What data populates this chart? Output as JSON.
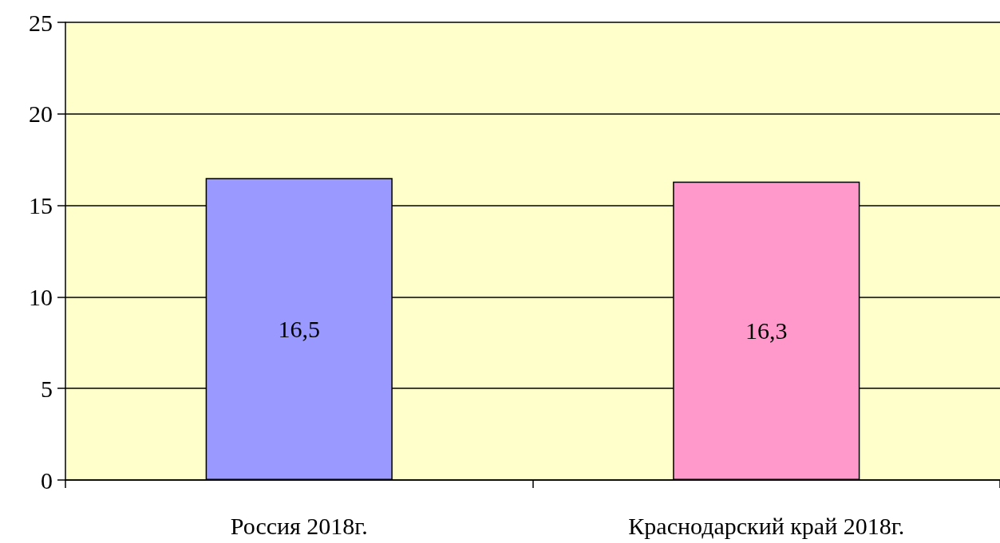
{
  "chart_data": {
    "type": "bar",
    "categories": [
      "Россия 2018г.",
      "Краснодарский край 2018г."
    ],
    "values": [
      16.5,
      16.3
    ],
    "colors": [
      "#9999ff",
      "#ff99cc"
    ],
    "value_labels": [
      "16,5",
      "16,3"
    ],
    "ylim": [
      0,
      25
    ],
    "yticks": [
      0,
      5,
      10,
      15,
      20,
      25
    ],
    "grid": "y"
  }
}
